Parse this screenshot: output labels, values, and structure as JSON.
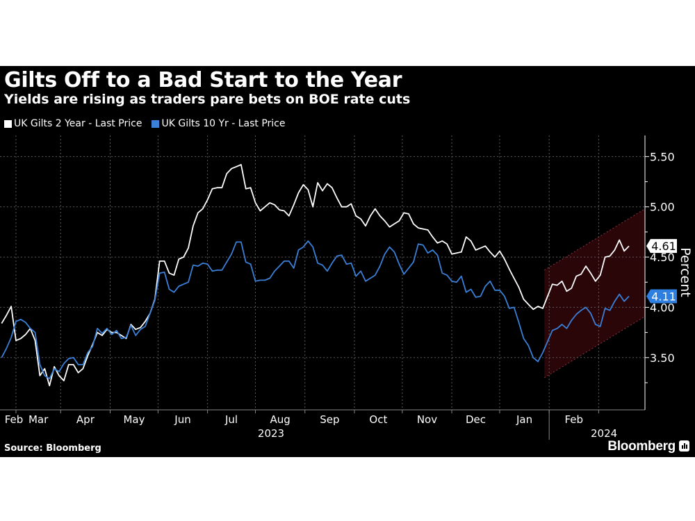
{
  "header": {
    "title": "Gilts Off to a Bad Start to the Year",
    "subtitle": "Yields are rising as traders pare bets on BOE rate cuts"
  },
  "footer": {
    "source": "Source: Bloomberg",
    "brand": "Bloomberg"
  },
  "chart_data": {
    "type": "line",
    "title": "Gilts Off to a Bad Start to the Year",
    "subtitle": "Yields are rising as traders pare bets on BOE rate cuts",
    "ylabel": "Percent",
    "xlabel": "",
    "xlim": [
      "2023-01-22",
      "2024-03-01"
    ],
    "ylim": [
      2.98,
      5.71
    ],
    "y_ticks": [
      "3.50",
      "4.00",
      "4.50",
      "5.00",
      "5.50"
    ],
    "y_axis_side": "right",
    "x_month_labels": [
      "Feb",
      "Mar",
      "Apr",
      "May",
      "Jun",
      "Jul",
      "Aug",
      "Sep",
      "Oct",
      "Nov",
      "Dec",
      "Jan",
      "Feb"
    ],
    "x_year_labels": [
      "2023",
      "2024"
    ],
    "grid": true,
    "legend_position": "top-left",
    "background": "#000000",
    "x": [
      "2023-01-23",
      "2023-01-26",
      "2023-01-29",
      "2023-02-01",
      "2023-02-04",
      "2023-02-07",
      "2023-02-10",
      "2023-02-13",
      "2023-02-16",
      "2023-02-19",
      "2023-02-22",
      "2023-02-25",
      "2023-02-28",
      "2023-03-03",
      "2023-03-06",
      "2023-03-09",
      "2023-03-12",
      "2023-03-15",
      "2023-03-18",
      "2023-03-21",
      "2023-03-24",
      "2023-03-27",
      "2023-03-30",
      "2023-04-02",
      "2023-04-05",
      "2023-04-08",
      "2023-04-11",
      "2023-04-14",
      "2023-04-17",
      "2023-04-20",
      "2023-04-23",
      "2023-04-26",
      "2023-04-29",
      "2023-05-02",
      "2023-05-05",
      "2023-05-08",
      "2023-05-11",
      "2023-05-14",
      "2023-05-17",
      "2023-05-20",
      "2023-05-23",
      "2023-05-26",
      "2023-05-29",
      "2023-06-01",
      "2023-06-04",
      "2023-06-07",
      "2023-06-10",
      "2023-06-13",
      "2023-06-16",
      "2023-06-19",
      "2023-06-22",
      "2023-06-25",
      "2023-06-28",
      "2023-07-01",
      "2023-07-04",
      "2023-07-07",
      "2023-07-10",
      "2023-07-13",
      "2023-07-16",
      "2023-07-19",
      "2023-07-22",
      "2023-07-25",
      "2023-07-28",
      "2023-07-31",
      "2023-08-03",
      "2023-08-06",
      "2023-08-09",
      "2023-08-12",
      "2023-08-15",
      "2023-08-18",
      "2023-08-21",
      "2023-08-24",
      "2023-08-27",
      "2023-08-30",
      "2023-09-02",
      "2023-09-05",
      "2023-09-08",
      "2023-09-11",
      "2023-09-14",
      "2023-09-17",
      "2023-09-20",
      "2023-09-23",
      "2023-09-26",
      "2023-09-29",
      "2023-10-02",
      "2023-10-05",
      "2023-10-08",
      "2023-10-11",
      "2023-10-14",
      "2023-10-17",
      "2023-10-20",
      "2023-10-23",
      "2023-10-26",
      "2023-10-29",
      "2023-11-01",
      "2023-11-04",
      "2023-11-07",
      "2023-11-10",
      "2023-11-13",
      "2023-11-16",
      "2023-11-19",
      "2023-11-22",
      "2023-11-25",
      "2023-11-28",
      "2023-12-01",
      "2023-12-04",
      "2023-12-07",
      "2023-12-10",
      "2023-12-13",
      "2023-12-16",
      "2023-12-19",
      "2023-12-22",
      "2023-12-25",
      "2023-12-28",
      "2023-12-31",
      "2024-01-03",
      "2024-01-06",
      "2024-01-09",
      "2024-01-12",
      "2024-01-15",
      "2024-01-18",
      "2024-01-21",
      "2024-01-24",
      "2024-01-27",
      "2024-01-30",
      "2024-02-02",
      "2024-02-05",
      "2024-02-08",
      "2024-02-11",
      "2024-02-14",
      "2024-02-17",
      "2024-02-20"
    ],
    "series": [
      {
        "name": "UK Gilts 2 Year - Last Price",
        "color": "#ffffff",
        "last_value_label": "4.61",
        "values": [
          3.84,
          3.92,
          4.01,
          3.67,
          3.69,
          3.73,
          3.79,
          3.67,
          3.32,
          3.39,
          3.22,
          3.41,
          3.32,
          3.27,
          3.43,
          3.43,
          3.35,
          3.39,
          3.52,
          3.63,
          3.75,
          3.72,
          3.78,
          3.75,
          3.75,
          3.72,
          3.69,
          3.83,
          3.78,
          3.8,
          3.86,
          3.94,
          4.08,
          4.46,
          4.46,
          4.34,
          4.32,
          4.48,
          4.5,
          4.59,
          4.81,
          4.94,
          4.98,
          5.07,
          5.18,
          5.19,
          5.19,
          5.33,
          5.38,
          5.4,
          5.42,
          5.18,
          5.19,
          5.04,
          4.96,
          5.0,
          5.04,
          5.02,
          4.97,
          4.96,
          4.91,
          5.02,
          5.14,
          5.22,
          5.17,
          5.0,
          5.24,
          5.16,
          5.23,
          5.19,
          5.09,
          5.0,
          5.0,
          5.03,
          4.91,
          4.88,
          4.81,
          4.91,
          4.98,
          4.91,
          4.86,
          4.8,
          4.83,
          4.86,
          4.94,
          4.93,
          4.83,
          4.79,
          4.78,
          4.77,
          4.7,
          4.64,
          4.66,
          4.63,
          4.53,
          4.54,
          4.55,
          4.7,
          4.66,
          4.57,
          4.59,
          4.61,
          4.55,
          4.5,
          4.56,
          4.48,
          4.38,
          4.29,
          4.2,
          4.08,
          4.03,
          3.98,
          4.01,
          3.99,
          4.11,
          4.23,
          4.22,
          4.26,
          4.16,
          4.19,
          4.31,
          4.33,
          4.41,
          4.34,
          4.26,
          4.32,
          4.5,
          4.51,
          4.57,
          4.67,
          4.56,
          4.61
        ]
      },
      {
        "name": "UK Gilts 10 Yr - Last Price",
        "color": "#3a80d8",
        "last_value_label": "4.11",
        "values": [
          3.5,
          3.59,
          3.7,
          3.86,
          3.88,
          3.85,
          3.79,
          3.75,
          3.43,
          3.32,
          3.29,
          3.39,
          3.36,
          3.44,
          3.49,
          3.5,
          3.43,
          3.43,
          3.55,
          3.61,
          3.79,
          3.74,
          3.79,
          3.73,
          3.77,
          3.69,
          3.7,
          3.82,
          3.72,
          3.78,
          3.81,
          3.94,
          4.07,
          4.34,
          4.35,
          4.18,
          4.15,
          4.21,
          4.23,
          4.25,
          4.42,
          4.41,
          4.44,
          4.43,
          4.36,
          4.37,
          4.37,
          4.45,
          4.53,
          4.65,
          4.65,
          4.45,
          4.43,
          4.26,
          4.27,
          4.27,
          4.29,
          4.36,
          4.41,
          4.46,
          4.46,
          4.39,
          4.57,
          4.6,
          4.66,
          4.6,
          4.44,
          4.42,
          4.36,
          4.44,
          4.51,
          4.52,
          4.43,
          4.44,
          4.31,
          4.36,
          4.26,
          4.29,
          4.32,
          4.41,
          4.53,
          4.6,
          4.55,
          4.43,
          4.33,
          4.39,
          4.45,
          4.63,
          4.62,
          4.54,
          4.57,
          4.52,
          4.34,
          4.32,
          4.26,
          4.25,
          4.31,
          4.15,
          4.18,
          4.1,
          4.11,
          4.21,
          4.26,
          4.17,
          4.17,
          4.11,
          3.99,
          4.0,
          3.85,
          3.69,
          3.62,
          3.5,
          3.46,
          3.55,
          3.66,
          3.77,
          3.79,
          3.83,
          3.79,
          3.87,
          3.93,
          3.97,
          4.0,
          3.94,
          3.83,
          3.81,
          3.99,
          3.97,
          4.06,
          4.13,
          4.06,
          4.11
        ]
      }
    ],
    "annotations": [
      {
        "type": "trend-channel",
        "fill": "#2a0609",
        "edge_color": "#8c3444",
        "x": [
          "2023-12-29",
          "2024-03-01"
        ],
        "upper": [
          4.37,
          4.98
        ],
        "lower": [
          3.3,
          3.91
        ]
      }
    ]
  }
}
